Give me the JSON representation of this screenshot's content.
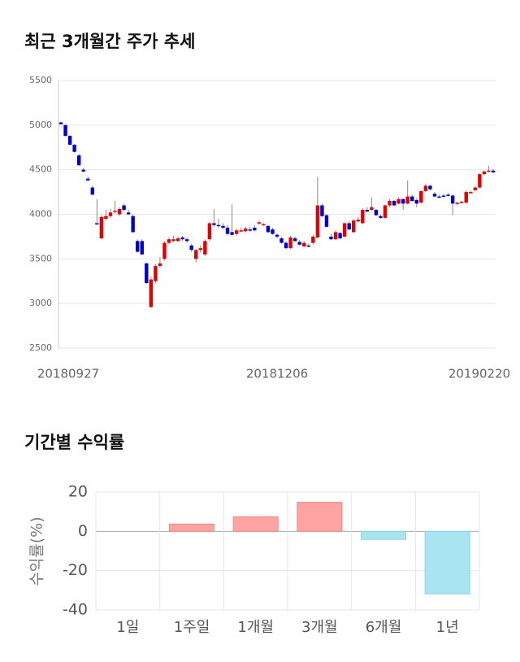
{
  "chart_data": [
    {
      "type": "candlestick",
      "title": "최근 3개월간 주가 추세",
      "categories": [
        "20180927",
        null,
        null,
        null,
        null,
        null,
        null,
        null,
        null,
        null,
        null,
        null,
        null,
        null,
        null,
        null,
        null,
        null,
        null,
        null,
        null,
        null,
        null,
        null,
        null,
        null,
        null,
        null,
        null,
        null,
        null,
        null,
        null,
        null,
        null,
        null,
        null,
        null,
        null,
        null,
        null,
        null,
        null,
        null,
        null,
        null,
        null,
        null,
        "20181206",
        null,
        null,
        null,
        null,
        null,
        null,
        null,
        null,
        null,
        null,
        null,
        null,
        null,
        null,
        null,
        null,
        null,
        null,
        null,
        null,
        null,
        null,
        null,
        null,
        null,
        null,
        null,
        null,
        null,
        null,
        null,
        null,
        null,
        null,
        null,
        null,
        null,
        null,
        null,
        null,
        null,
        null,
        null,
        null,
        null,
        null,
        null,
        "20190220"
      ],
      "open": [
        5030,
        5000,
        4880,
        4780,
        4660,
        4500,
        4400,
        4300,
        3900,
        3730,
        3950,
        3980,
        4030,
        4000,
        4100,
        4020,
        3980,
        3700,
        3700,
        3450,
        2960,
        3250,
        3420,
        3500,
        3680,
        3700,
        3700,
        3740,
        3720,
        3650,
        3500,
        3600,
        3550,
        3720,
        3900,
        3880,
        3870,
        3850,
        3800,
        3780,
        3820,
        3810,
        3830,
        3850,
        3900,
        3880,
        3870,
        3830,
        3770,
        3730,
        3680,
        3620,
        3730,
        3690,
        3640,
        3650,
        3680,
        3740,
        4100,
        3990,
        3750,
        3720,
        3790,
        3750,
        3900,
        3800,
        3920,
        3900,
        4050,
        4050,
        4050,
        3980,
        3960,
        4100,
        4150,
        4120,
        4170,
        4120,
        4200,
        4160,
        4130,
        4260,
        4320,
        4230,
        4200,
        4210,
        4220,
        4210,
        4120,
        4130,
        4130,
        4240,
        4270,
        4300,
        4450,
        4480,
        4490
      ],
      "high": [
        5040,
        5010,
        4890,
        4790,
        4680,
        4520,
        4420,
        4320,
        4170,
        3990,
        4050,
        4060,
        4150,
        4080,
        4120,
        4050,
        4000,
        3720,
        3720,
        3460,
        3300,
        3440,
        3520,
        3700,
        3740,
        3760,
        3750,
        3760,
        3740,
        3670,
        3610,
        3650,
        3720,
        3910,
        4060,
        3950,
        3900,
        3880,
        4110,
        3840,
        3850,
        3860,
        3860,
        3880,
        3930,
        3900,
        3880,
        3850,
        3790,
        3750,
        3700,
        3760,
        3750,
        3710,
        3700,
        3670,
        3770,
        4420,
        4120,
        4000,
        3780,
        3820,
        3800,
        3910,
        3920,
        3950,
        3970,
        4070,
        4080,
        4190,
        4060,
        4000,
        4110,
        4170,
        4160,
        4190,
        4180,
        4380,
        4220,
        4180,
        4270,
        4340,
        4330,
        4250,
        4220,
        4230,
        4240,
        4220,
        4140,
        4150,
        4270,
        4260,
        4320,
        4460,
        4490,
        4540,
        4510
      ],
      "low": [
        5010,
        4870,
        4770,
        4690,
        4540,
        4470,
        4370,
        4210,
        3880,
        3720,
        3930,
        3960,
        4010,
        3980,
        4030,
        3990,
        3790,
        3570,
        3540,
        3220,
        2950,
        3230,
        3400,
        3480,
        3660,
        3690,
        3690,
        3700,
        3680,
        3580,
        3460,
        3570,
        3530,
        3700,
        3860,
        3850,
        3830,
        3770,
        3760,
        3760,
        3800,
        3800,
        3800,
        3810,
        3880,
        3870,
        3790,
        3770,
        3730,
        3670,
        3610,
        3610,
        3690,
        3650,
        3630,
        3630,
        3660,
        3730,
        3970,
        3850,
        3710,
        3710,
        3720,
        3740,
        3820,
        3790,
        3910,
        3890,
        4020,
        4040,
        3980,
        3950,
        3950,
        4080,
        4090,
        4110,
        4050,
        4110,
        4140,
        4080,
        4120,
        4250,
        4270,
        4190,
        4180,
        4190,
        4200,
        3990,
        4100,
        4120,
        4120,
        4230,
        4260,
        4290,
        4440,
        4470,
        4460
      ],
      "close": [
        5010,
        4880,
        4780,
        4700,
        4550,
        4480,
        4380,
        4220,
        3890,
        3970,
        3980,
        4020,
        4040,
        4060,
        4050,
        4000,
        3800,
        3580,
        3550,
        3230,
        3270,
        3420,
        3450,
        3680,
        3720,
        3720,
        3730,
        3720,
        3700,
        3600,
        3600,
        3620,
        3700,
        3900,
        3880,
        3870,
        3850,
        3780,
        3770,
        3820,
        3820,
        3840,
        3820,
        3820,
        3910,
        3890,
        3800,
        3780,
        3750,
        3680,
        3620,
        3740,
        3700,
        3660,
        3680,
        3640,
        3750,
        4100,
        3980,
        3860,
        3720,
        3800,
        3730,
        3900,
        3830,
        3930,
        3940,
        4050,
        4030,
        4080,
        3990,
        3960,
        4100,
        4150,
        4100,
        4170,
        4120,
        4200,
        4150,
        4120,
        4260,
        4320,
        4280,
        4200,
        4190,
        4200,
        4210,
        4120,
        4130,
        4140,
        4250,
        4250,
        4300,
        4450,
        4480,
        4490,
        4470
      ],
      "up_color": "#e00000",
      "down_color": "#0000cc",
      "ylim": [
        2500,
        5500
      ],
      "yticks": [
        2500,
        3000,
        3500,
        4000,
        4500,
        5000,
        5500
      ],
      "grid": true
    },
    {
      "type": "bar",
      "title": "기간별 수익률",
      "ylabel": "수익률(%)",
      "categories": [
        "1일",
        "1주일",
        "1개월",
        "3개월",
        "6개월",
        "1년"
      ],
      "values": [
        0,
        3.7,
        7.4,
        14.8,
        -4.1,
        -31.8
      ],
      "positive_color": "#ffa3a3",
      "negative_color": "#a9e5f0",
      "ylim": [
        -40,
        20
      ],
      "yticks": [
        -40,
        -20,
        0,
        20
      ],
      "grid": true
    }
  ]
}
